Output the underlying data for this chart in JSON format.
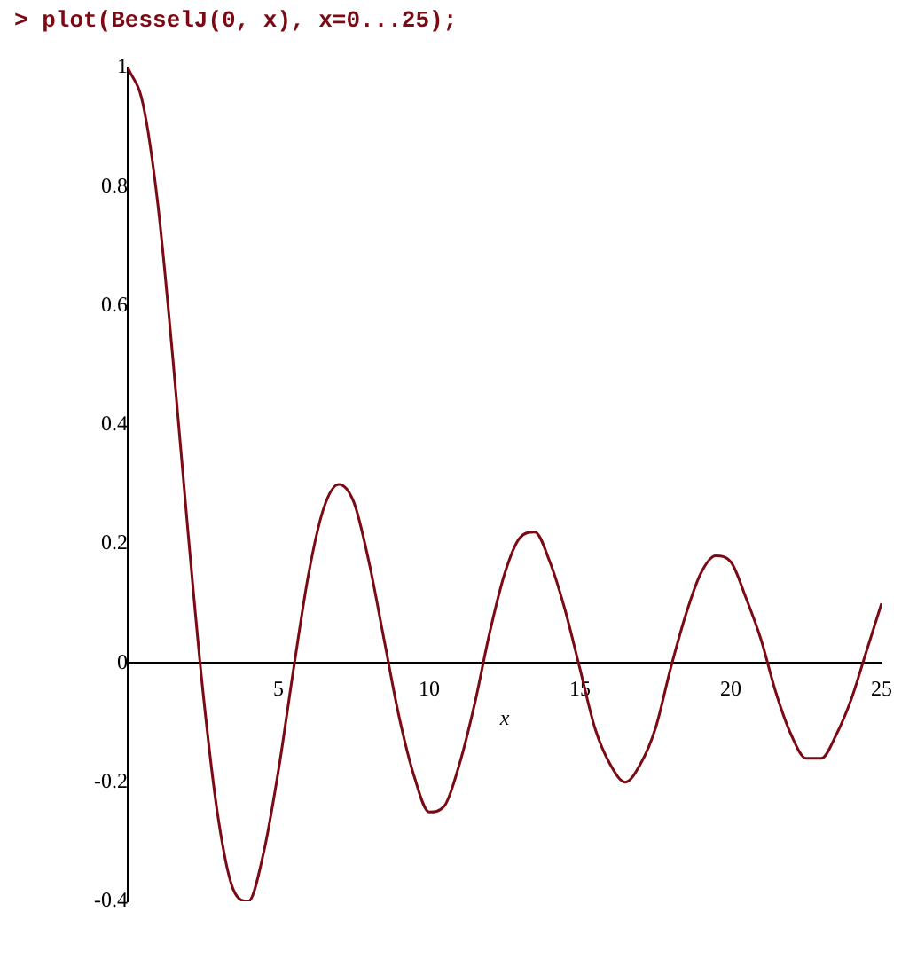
{
  "chart_data": {
    "type": "line",
    "title": "> plot(BesselJ(0, x), x=0...25);",
    "xlabel": "x",
    "x": [
      0,
      0.5,
      1,
      1.5,
      2,
      2.5,
      3,
      3.5,
      4,
      4.5,
      5,
      5.5,
      6,
      6.5,
      7,
      7.5,
      8,
      8.5,
      9,
      9.5,
      10,
      10.5,
      11,
      11.5,
      12,
      12.5,
      13,
      13.5,
      14,
      14.5,
      15,
      15.5,
      16,
      16.5,
      17,
      17.5,
      18,
      18.5,
      19,
      19.5,
      20,
      20.5,
      21,
      21.5,
      22,
      22.5,
      23,
      23.5,
      24,
      24.5,
      25
    ],
    "series": [
      {
        "color": "#7b0a14",
        "values": [
          1,
          0.94,
          0.77,
          0.51,
          0.22,
          -0.05,
          -0.26,
          -0.38,
          -0.4,
          -0.32,
          -0.18,
          -0.01,
          0.15,
          0.26,
          0.3,
          0.27,
          0.17,
          0.04,
          -0.09,
          -0.19,
          -0.25,
          -0.24,
          -0.17,
          -0.07,
          0.05,
          0.15,
          0.21,
          0.22,
          0.17,
          0.09,
          -0.01,
          -0.11,
          -0.17,
          -0.2,
          -0.17,
          -0.11,
          -0.01,
          0.08,
          0.15,
          0.18,
          0.17,
          0.11,
          0.04,
          -0.05,
          -0.12,
          -0.16,
          -0.16,
          -0.12,
          -0.06,
          0.02,
          0.1
        ]
      }
    ],
    "xlim": [
      0,
      25
    ],
    "xticks": [
      5,
      10,
      15,
      20,
      25
    ],
    "ylim": [
      -0.4,
      1
    ],
    "yticks": [
      -0.4,
      -0.2,
      0,
      0.2,
      0.4,
      0.6,
      0.8,
      1
    ],
    "grid": false,
    "legend": false,
    "marker": "none",
    "line_style": "solid"
  }
}
